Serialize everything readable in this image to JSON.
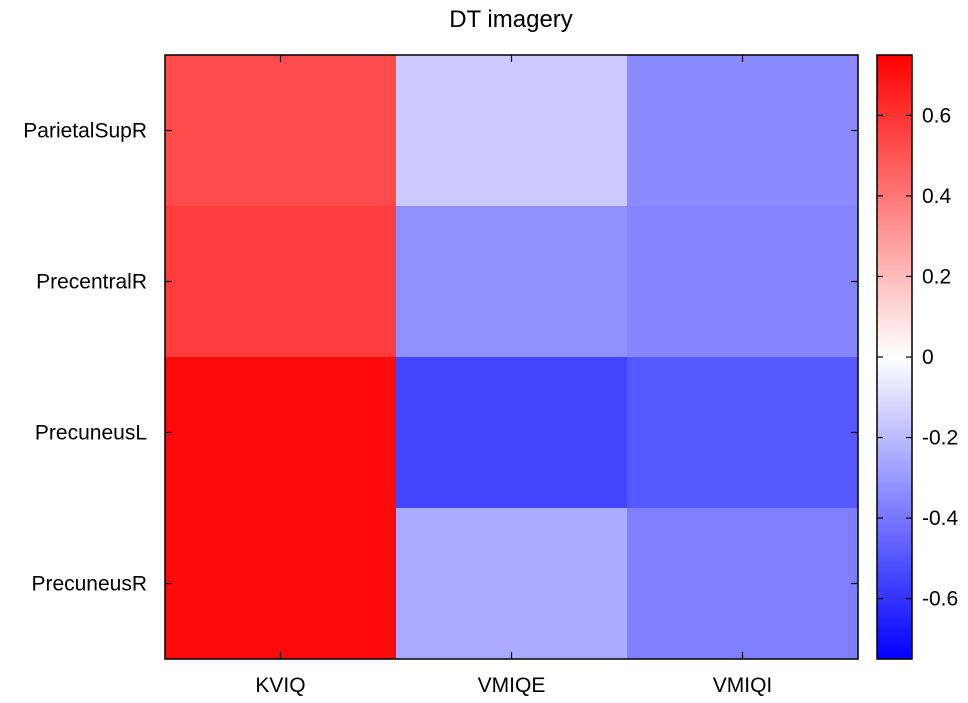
{
  "chart_data": {
    "type": "heatmap",
    "title": "DT imagery",
    "xlabel": "",
    "ylabel": "",
    "x_categories": [
      "KVIQ",
      "VMIQE",
      "VMIQI"
    ],
    "y_categories": [
      "ParietalSupR",
      "PrecentralR",
      "PrecuneusL",
      "PrecuneusR"
    ],
    "values": [
      [
        0.53,
        -0.16,
        -0.34
      ],
      [
        0.57,
        -0.33,
        -0.36
      ],
      [
        0.72,
        -0.55,
        -0.49
      ],
      [
        0.72,
        -0.25,
        -0.38
      ]
    ],
    "colorbar": {
      "range": [
        -0.75,
        0.75
      ],
      "ticks": [
        -0.6,
        -0.4,
        -0.2,
        0,
        0.2,
        0.4,
        0.6
      ],
      "tick_labels": [
        "-0.6",
        "-0.4",
        "-0.2",
        "0",
        "0.2",
        "0.4",
        "0.6"
      ],
      "colormap": [
        "#0000ff",
        "#ffffff",
        "#ff0000"
      ]
    },
    "grid": false,
    "legend": "colorbar-right"
  }
}
